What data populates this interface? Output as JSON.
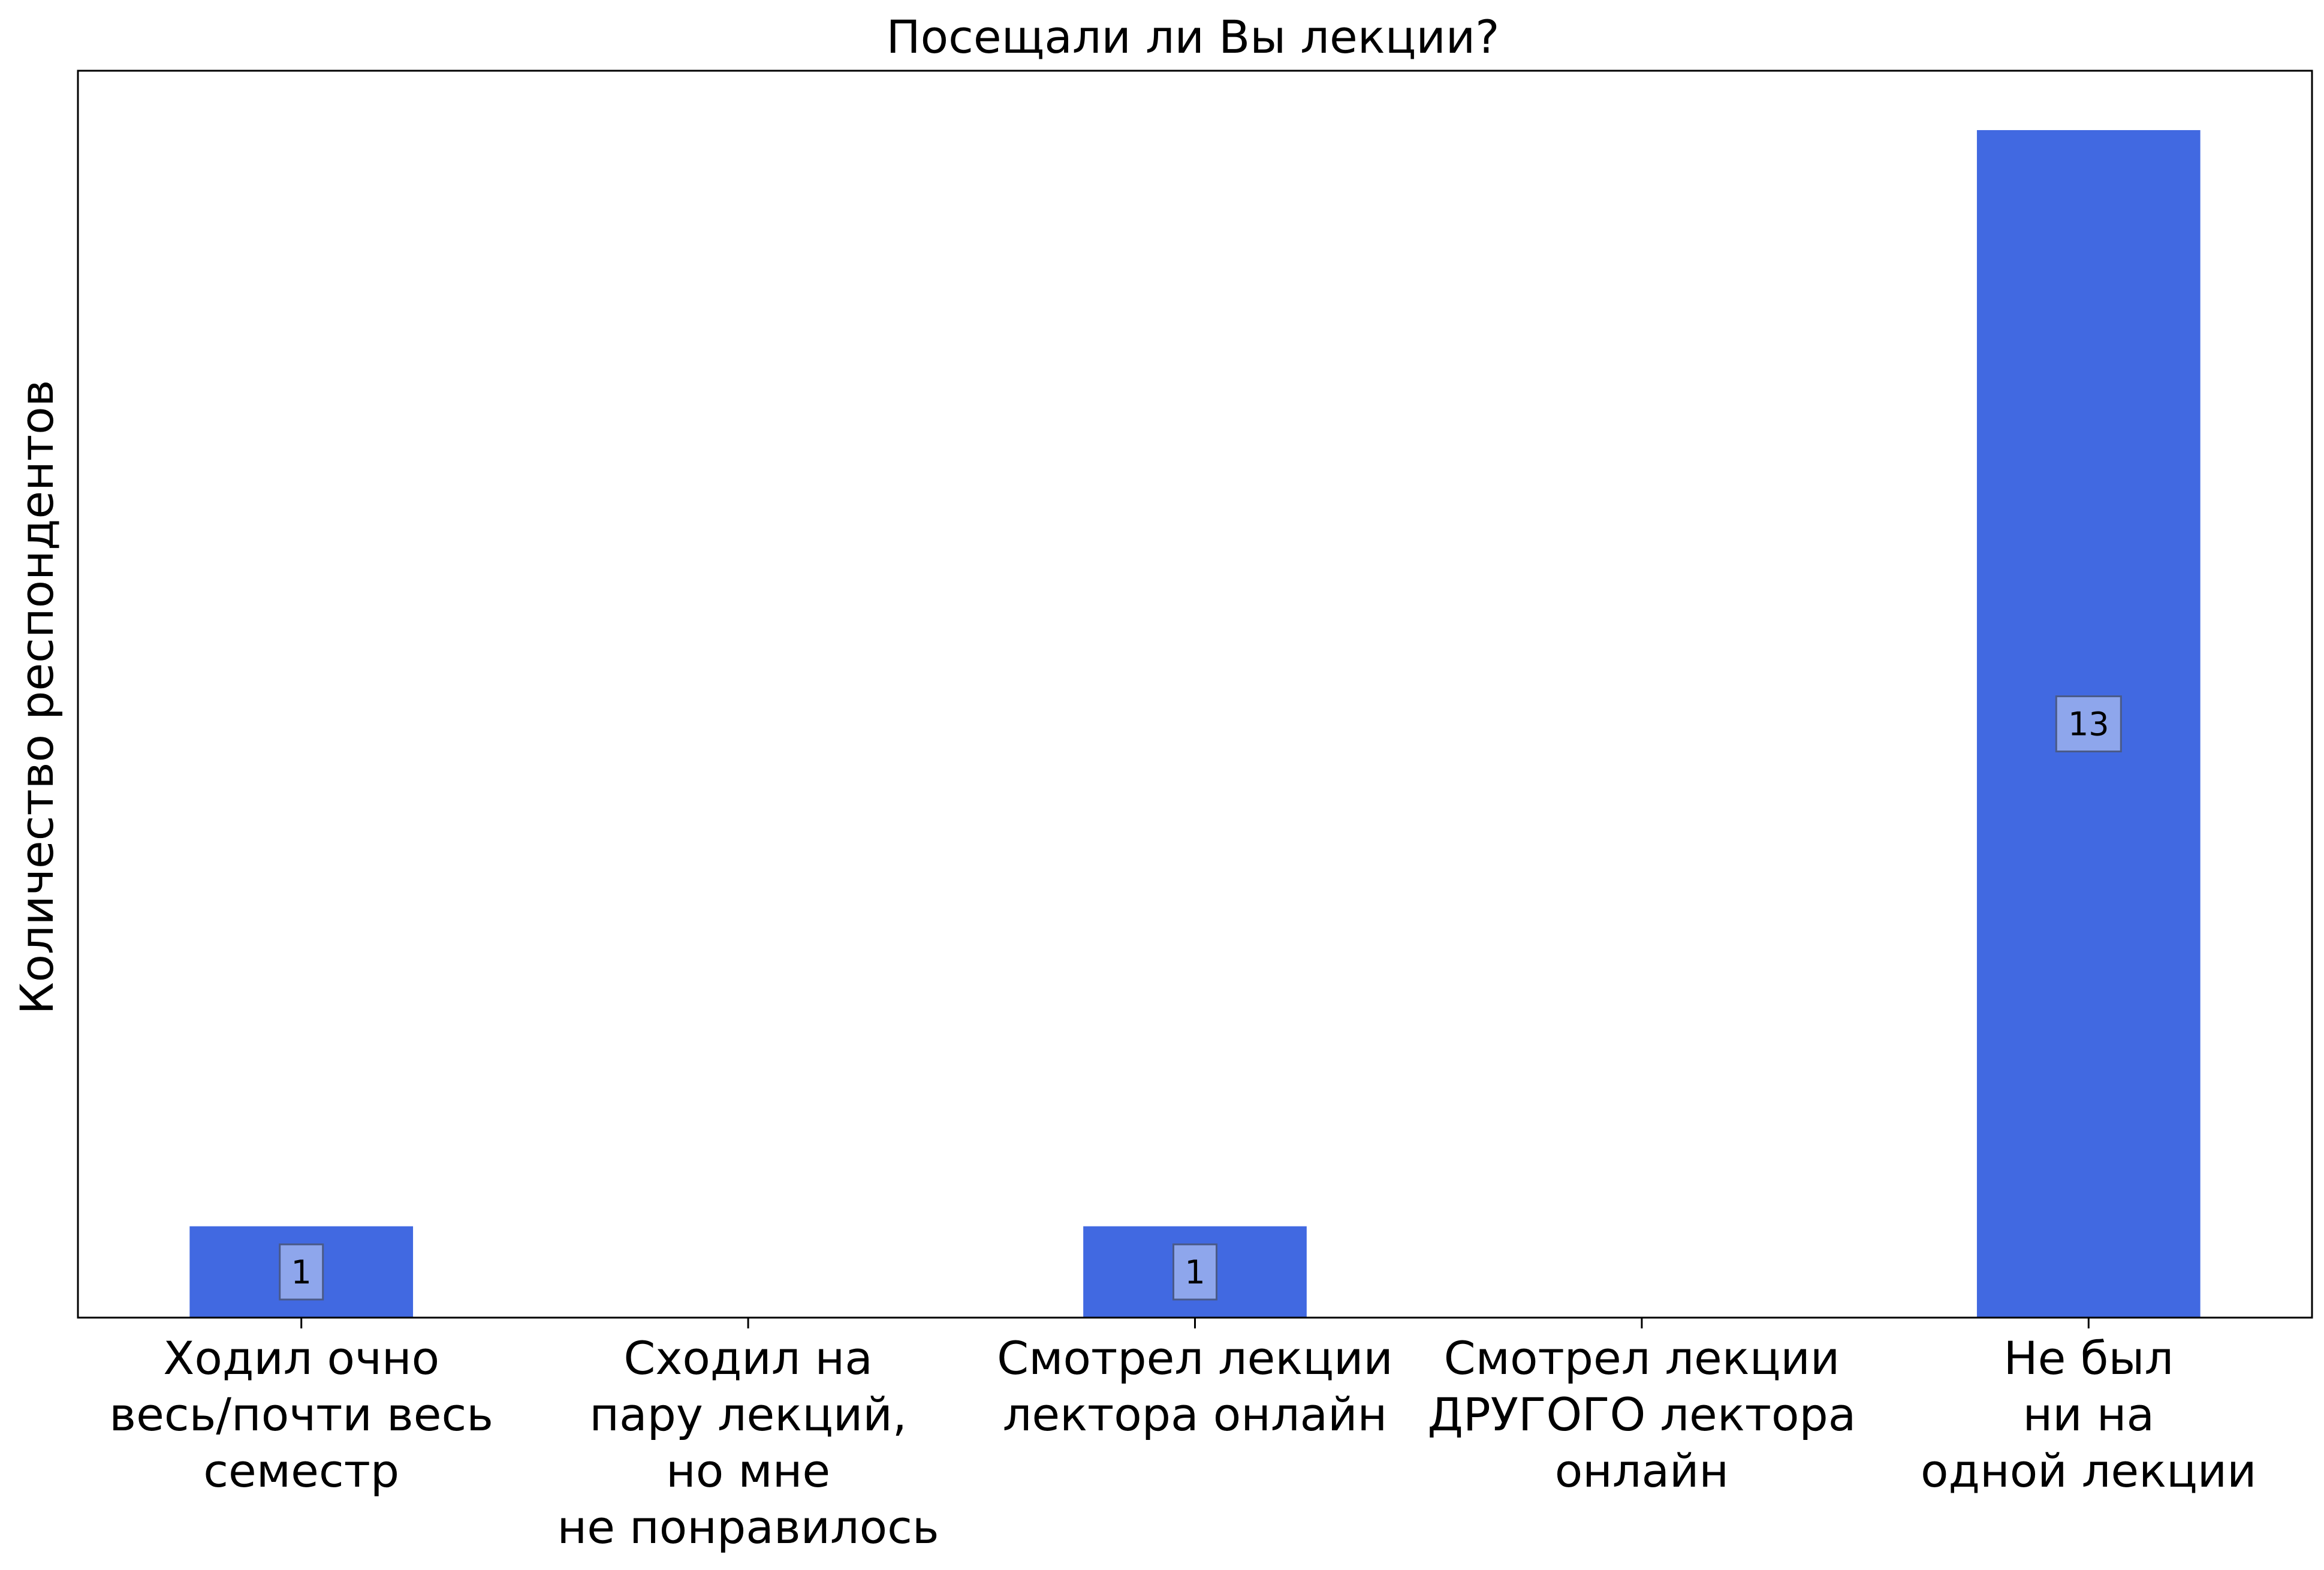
{
  "chart_data": {
    "type": "bar",
    "title": "Посещали ли Вы лекции?",
    "xlabel": "",
    "ylabel": "Количество респондентов",
    "categories": [
      [
        "Ходил очно",
        "весь/почти весь",
        "семестр"
      ],
      [
        "Сходил на",
        "пару лекций,",
        "но мне",
        "не понравилось"
      ],
      [
        "Смотрел лекции",
        "лектора онлайн"
      ],
      [
        "Смотрел лекции",
        "ДРУГОГО лектора",
        "онлайн"
      ],
      [
        "Не был",
        "ни на",
        "одной лекции"
      ]
    ],
    "values": [
      1,
      0,
      1,
      0,
      13
    ],
    "data_labels": [
      "1",
      "",
      "1",
      "",
      "13"
    ],
    "ylim": [
      0,
      13.65
    ],
    "y_ticks_shown": false,
    "grid": false,
    "legend": "none",
    "bar_color": "#4169e1",
    "label_box_color": "#8ea6ec"
  }
}
